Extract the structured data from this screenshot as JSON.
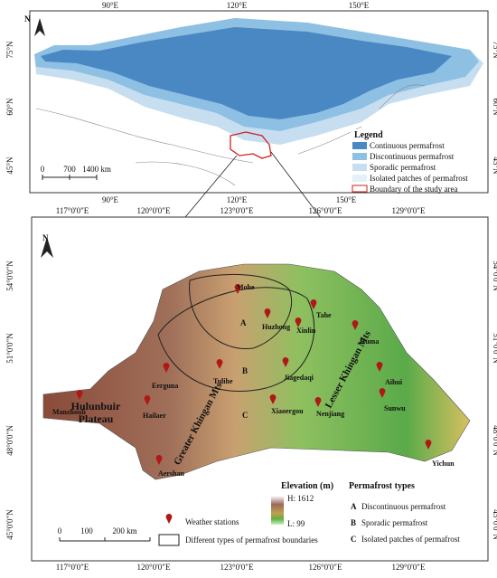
{
  "overview_map": {
    "north": "N",
    "lon_labels_top": [
      "90°E",
      "120°E",
      "150°E"
    ],
    "lon_labels_bottom": [
      "90°E",
      "120°E",
      "150°E"
    ],
    "lat_labels_left": [
      "75°N",
      "60°N",
      "45°N"
    ],
    "lat_labels_right": [
      "75°N",
      "60°N",
      "45°N"
    ],
    "legend": {
      "title": "Legend",
      "items": [
        "Continuous permafrost",
        "Discontinuous permafrost",
        "Sporadic permafrost",
        "Isolated patches of permafrost",
        "Boundary of the study area"
      ]
    },
    "scale": [
      "0",
      "700",
      "1400 km"
    ]
  },
  "study_area_map": {
    "north": "N",
    "lon_labels_top": [
      "117°0'0\"E",
      "120°0'0\"E",
      "123°0'0\"E",
      "126°0'0\"E",
      "129°0'0\"E"
    ],
    "lon_labels_bottom": [
      "117°0'0\"E",
      "120°0'0\"E",
      "123°0'0\"E",
      "126°0'0\"E",
      "129°0'0\"E"
    ],
    "lat_labels_left": [
      "54°0'0\"N",
      "51°0'0\"N",
      "48°0'0\"N",
      "45°0'0\"N"
    ],
    "lat_labels_right": [
      "54°0'0\"N",
      "51°0'0\"N",
      "48°0'0\"N",
      "45°0'0\"N"
    ],
    "stations": [
      "Mohe",
      "Tahe",
      "Huzhong",
      "Xinlin",
      "Huma",
      "Tulihe",
      "Jiagedaqi",
      "Aihui",
      "Eerguna",
      "Manzhouli",
      "Hailaer",
      "Xiaoergou",
      "Nenjiang",
      "Sunwu",
      "Yichun",
      "Aershan"
    ],
    "regions": [
      "Hulunbuir",
      "Plateau",
      "Greater Khingan Mts",
      "Lesser Khingan Mts"
    ],
    "zones": [
      "A",
      "B",
      "C"
    ],
    "elevation": {
      "title": "Elevation (m)",
      "high": "H: 1612",
      "low": "L: 99"
    },
    "permafrost_types": {
      "title": "Permafrost types",
      "items": [
        {
          "key": "A",
          "label": "Discontinuous permafrost"
        },
        {
          "key": "B",
          "label": "Sporadic permafrost"
        },
        {
          "key": "C",
          "label": "Isolated patches of permafrost"
        }
      ]
    },
    "symbols": [
      "Weather stations",
      "Different types of permafrost boundaries"
    ],
    "scale": [
      "0",
      "100",
      "200 km"
    ]
  }
}
